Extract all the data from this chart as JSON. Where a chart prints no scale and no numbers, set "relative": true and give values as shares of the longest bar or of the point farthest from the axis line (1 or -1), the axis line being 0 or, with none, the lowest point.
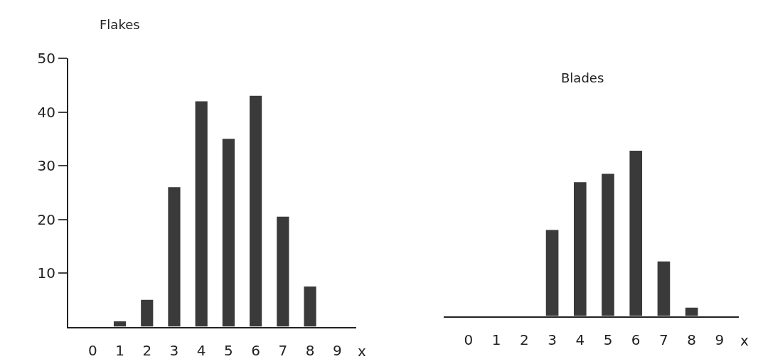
{
  "chart_data": [
    {
      "type": "bar",
      "title": "Flakes",
      "xlabel": "x",
      "categories": [
        "0",
        "1",
        "2",
        "3",
        "4",
        "5",
        "6",
        "7",
        "8",
        "9"
      ],
      "values": [
        0,
        1,
        5,
        26,
        42,
        35,
        43,
        20.5,
        7.5,
        0
      ],
      "color": "#3a3a3a",
      "ylim": [
        0,
        50
      ],
      "yticks": [
        10,
        20,
        30,
        40,
        50
      ]
    },
    {
      "type": "bar",
      "title": "Blades",
      "xlabel": "x",
      "categories": [
        "0",
        "1",
        "2",
        "3",
        "4",
        "5",
        "6",
        "7",
        "8",
        "9"
      ],
      "values": [
        0,
        0,
        0,
        0.52,
        0.81,
        0.86,
        1,
        0.33,
        0.05,
        0
      ],
      "color": "#3a3a3a",
      "relative": true
    }
  ]
}
